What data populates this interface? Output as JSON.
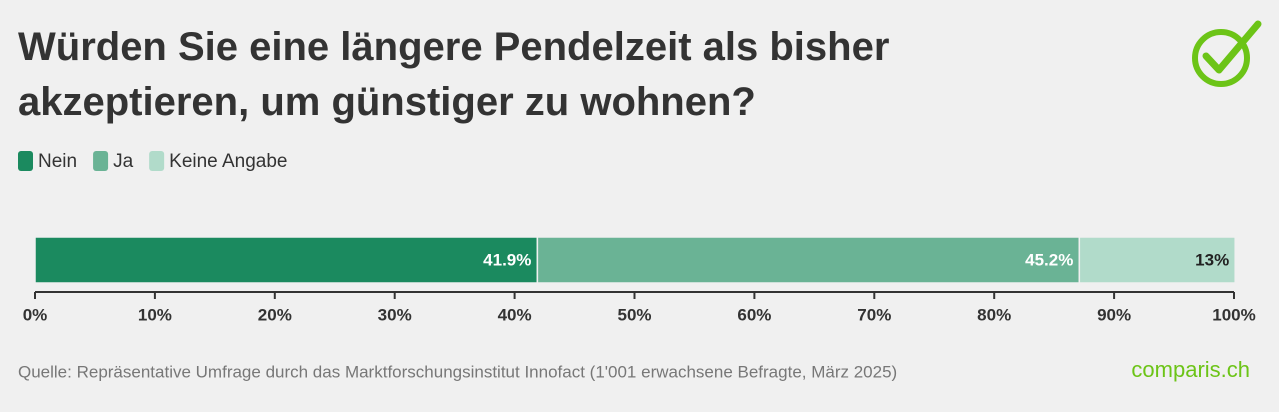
{
  "chart_data": {
    "type": "stacked-bar-horizontal",
    "title": "Würden Sie eine längere Pendelzeit als bisher akzeptieren, um günstiger zu wohnen?",
    "categories": [
      null
    ],
    "series": [
      {
        "name": "Nein",
        "color": "#1b8a5f",
        "values": [
          41.9
        ],
        "value_labels": [
          "41.9%"
        ]
      },
      {
        "name": "Ja",
        "color": "#6ab395",
        "values": [
          45.2
        ],
        "value_labels": [
          "45.2%"
        ]
      },
      {
        "name": "Keine Angabe",
        "color": "#b1dbca",
        "values": [
          13
        ],
        "value_labels": [
          "13%"
        ]
      }
    ],
    "xlim": [
      0,
      100
    ],
    "xticks": [
      {
        "value": 0,
        "label": "0%"
      },
      {
        "value": 10,
        "label": "10%"
      },
      {
        "value": 20,
        "label": "20%"
      },
      {
        "value": 30,
        "label": "30%"
      },
      {
        "value": 40,
        "label": "40%"
      },
      {
        "value": 50,
        "label": "50%"
      },
      {
        "value": 60,
        "label": "60%"
      },
      {
        "value": 70,
        "label": "70%"
      },
      {
        "value": 80,
        "label": "80%"
      },
      {
        "value": 90,
        "label": "90%"
      },
      {
        "value": 100,
        "label": "100%"
      }
    ],
    "source": "Quelle: Repräsentative Umfrage durch das Marktforschungsinstitut Innofact (1'001 erwachsene Befragte, März 2025)",
    "logo": "comparis.ch"
  }
}
